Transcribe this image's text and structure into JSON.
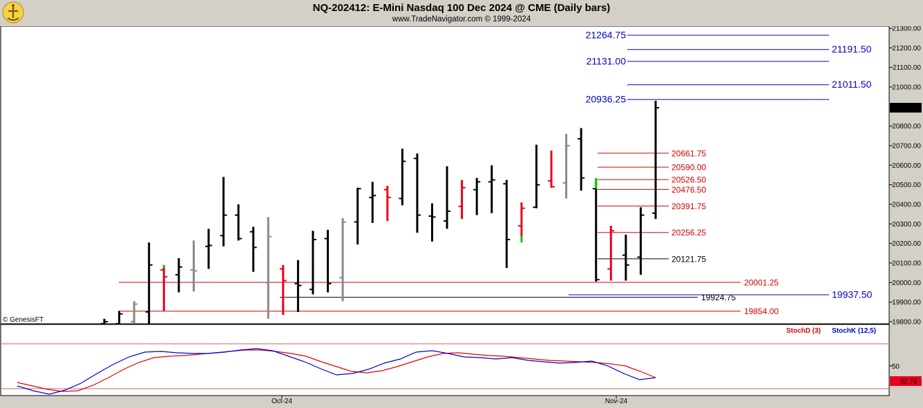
{
  "header": {
    "title": "NQ-202412:  E-Mini Nasdaq 100 Dec 2024 @ CME  (Daily bars)",
    "subtitle": "www.TradeNavigator.com © 1999-2024",
    "watermark": "© GenesisFT"
  },
  "colors": {
    "up": "#000000",
    "down": "#000000",
    "accent_red": "#e8001c",
    "accent_green": "#00d000",
    "accent_gray": "#888888",
    "level_blue": "#0000c8",
    "level_red": "#d00000",
    "stochD": "#e00000",
    "stochK": "#0000d0"
  },
  "chart_data": [
    {
      "type": "ohlc",
      "title": "NQ-202412:  E-Mini Nasdaq 100 Dec 2024 @ CME  (Daily bars)",
      "ylim": [
        19780,
        21320
      ],
      "y_ticks": [
        "21300.00",
        "21200.00",
        "21100.00",
        "21000.00",
        "20900.00",
        "20800.00",
        "20700.00",
        "20600.00",
        "20500.00",
        "20400.00",
        "20300.00",
        "20200.00",
        "20100.00",
        "20000.00",
        "19900.00",
        "19800.00"
      ],
      "last_price": "20894.00",
      "x_labels": [
        "Oct-24",
        "Nov-24"
      ],
      "bars": [
        {
          "h": 19815,
          "l": 19780,
          "o": 19790,
          "c": 19800,
          "color": "black"
        },
        {
          "h": 19855,
          "l": 19780,
          "o": 19790,
          "c": 19840,
          "color": "black"
        },
        {
          "h": 19905,
          "l": 19780,
          "o": 19800,
          "c": 19890,
          "color": "gray"
        },
        {
          "h": 20205,
          "l": 19780,
          "o": 19850,
          "c": 20090,
          "color": "black"
        },
        {
          "h": 20090,
          "l": 19855,
          "o": 20065,
          "c": 20030,
          "color": "red"
        },
        {
          "h": 20125,
          "l": 19950,
          "o": 20040,
          "c": 20080,
          "color": "black"
        },
        {
          "h": 20215,
          "l": 19955,
          "o": 20065,
          "c": 20060,
          "color": "gray"
        },
        {
          "h": 20275,
          "l": 20070,
          "o": 20185,
          "c": 20190,
          "color": "black"
        },
        {
          "h": 20540,
          "l": 20185,
          "o": 20240,
          "c": 20345,
          "color": "black"
        },
        {
          "h": 20400,
          "l": 20215,
          "o": 20345,
          "c": 20225,
          "color": "black"
        },
        {
          "h": 20285,
          "l": 20055,
          "o": 20260,
          "c": 20180,
          "color": "black"
        },
        {
          "h": 20335,
          "l": 19815,
          "o": 20000,
          "c": 20235,
          "color": "gray"
        },
        {
          "h": 20090,
          "l": 19835,
          "o": 20070,
          "c": 20010,
          "color": "red"
        },
        {
          "h": 20115,
          "l": 19850,
          "o": 19995,
          "c": 19985,
          "color": "black"
        },
        {
          "h": 20265,
          "l": 19940,
          "o": 19965,
          "c": 20220,
          "color": "black"
        },
        {
          "h": 20270,
          "l": 19950,
          "o": 20225,
          "c": 19995,
          "color": "black"
        },
        {
          "h": 20330,
          "l": 19905,
          "o": 20025,
          "c": 20310,
          "color": "gray"
        },
        {
          "h": 20485,
          "l": 20195,
          "o": 20310,
          "c": 20480,
          "color": "black"
        },
        {
          "h": 20515,
          "l": 20305,
          "o": 20435,
          "c": 20445,
          "color": "black"
        },
        {
          "h": 20495,
          "l": 20315,
          "o": 20475,
          "c": 20435,
          "color": "red"
        },
        {
          "h": 20685,
          "l": 20395,
          "o": 20430,
          "c": 20620,
          "color": "black"
        },
        {
          "h": 20660,
          "l": 20255,
          "o": 20635,
          "c": 20345,
          "color": "black"
        },
        {
          "h": 20405,
          "l": 20210,
          "o": 20340,
          "c": 20335,
          "color": "black"
        },
        {
          "h": 20595,
          "l": 20275,
          "o": 20315,
          "c": 20365,
          "color": "black"
        },
        {
          "h": 20525,
          "l": 20325,
          "o": 20390,
          "c": 20485,
          "color": "red"
        },
        {
          "h": 20535,
          "l": 20345,
          "o": 20475,
          "c": 20515,
          "color": "black"
        },
        {
          "h": 20600,
          "l": 20355,
          "o": 20515,
          "c": 20525,
          "color": "black"
        },
        {
          "h": 20525,
          "l": 20075,
          "o": 20505,
          "c": 20220,
          "color": "black"
        },
        {
          "h": 20410,
          "l": 20220,
          "o": 20290,
          "c": 20380,
          "color": "red"
        },
        {
          "h": 20705,
          "l": 20380,
          "o": 20385,
          "c": 20500,
          "color": "black"
        },
        {
          "h": 20675,
          "l": 20485,
          "o": 20520,
          "c": 20490,
          "color": "red"
        },
        {
          "h": 20760,
          "l": 20430,
          "o": 20510,
          "c": 20700,
          "color": "gray"
        },
        {
          "h": 20790,
          "l": 20470,
          "o": 20735,
          "c": 20535,
          "color": "black"
        },
        {
          "h": 20530,
          "l": 20005,
          "o": 20480,
          "c": 20015,
          "color": "black"
        },
        {
          "h": 20290,
          "l": 20010,
          "o": 20070,
          "c": 20265,
          "color": "red"
        },
        {
          "h": 20245,
          "l": 20010,
          "o": 20140,
          "c": 20090,
          "color": "black"
        },
        {
          "h": 20385,
          "l": 20040,
          "o": 20130,
          "c": 20345,
          "color": "black"
        },
        {
          "h": 20930,
          "l": 20325,
          "o": 20355,
          "c": 20894,
          "color": "black"
        }
      ],
      "levels": [
        {
          "price": 21264.75,
          "label": "21264.75",
          "color": "blue",
          "side": "left"
        },
        {
          "price": 21191.5,
          "label": "21191.50",
          "color": "blue",
          "side": "right"
        },
        {
          "price": 21131.0,
          "label": "21131.00",
          "color": "blue",
          "side": "left"
        },
        {
          "price": 21011.5,
          "label": "21011.50",
          "color": "blue",
          "side": "right"
        },
        {
          "price": 20936.25,
          "label": "20936.25",
          "color": "blue",
          "side": "left"
        },
        {
          "price": 20661.75,
          "label": "20661.75",
          "color": "red",
          "side": "right"
        },
        {
          "price": 20590.0,
          "label": "20590.00",
          "color": "red",
          "side": "right"
        },
        {
          "price": 20526.5,
          "label": "20526.50",
          "color": "red",
          "side": "right"
        },
        {
          "price": 20476.5,
          "label": "20476.50",
          "color": "red",
          "side": "right"
        },
        {
          "price": 20391.75,
          "label": "20391.75",
          "color": "red",
          "side": "right"
        },
        {
          "price": 20256.25,
          "label": "20256.25",
          "color": "red",
          "side": "right"
        },
        {
          "price": 20121.75,
          "label": "20121.75",
          "color": "black",
          "side": "right"
        },
        {
          "price": 20001.25,
          "label": "20001.25",
          "color": "red",
          "side": "right"
        },
        {
          "price": 19937.5,
          "label": "19937.50",
          "color": "blue",
          "side": "right"
        },
        {
          "price": 19924.75,
          "label": "19924.75",
          "color": "black",
          "side": "right"
        },
        {
          "price": 19854.0,
          "label": "19854.00",
          "color": "red",
          "side": "right"
        }
      ]
    },
    {
      "type": "line",
      "title": "",
      "ylim": [
        0,
        100
      ],
      "y_ticks": [
        "50"
      ],
      "last_value": "32.74",
      "series": [
        {
          "name": "StochD (3)",
          "color": "red",
          "values": [
            26,
            21,
            16,
            13,
            14,
            22,
            33,
            45,
            55,
            62,
            64,
            65,
            67,
            69,
            71,
            73,
            73,
            71,
            68,
            64,
            56,
            49,
            42,
            40,
            43,
            49,
            56,
            63,
            68,
            69,
            67,
            65,
            64,
            62,
            60,
            58,
            57,
            56,
            55,
            53,
            50,
            42,
            33
          ]
        },
        {
          "name": "StochK (12,5)",
          "color": "blue",
          "values": [
            21,
            14,
            9,
            15,
            25,
            39,
            52,
            63,
            70,
            71,
            69,
            68,
            68,
            70,
            73,
            75,
            72,
            64,
            56,
            46,
            37,
            39,
            45,
            54,
            60,
            70,
            72,
            68,
            63,
            62,
            60,
            62,
            58,
            56,
            54,
            55,
            57,
            50,
            39,
            30,
            33
          ]
        }
      ]
    }
  ]
}
